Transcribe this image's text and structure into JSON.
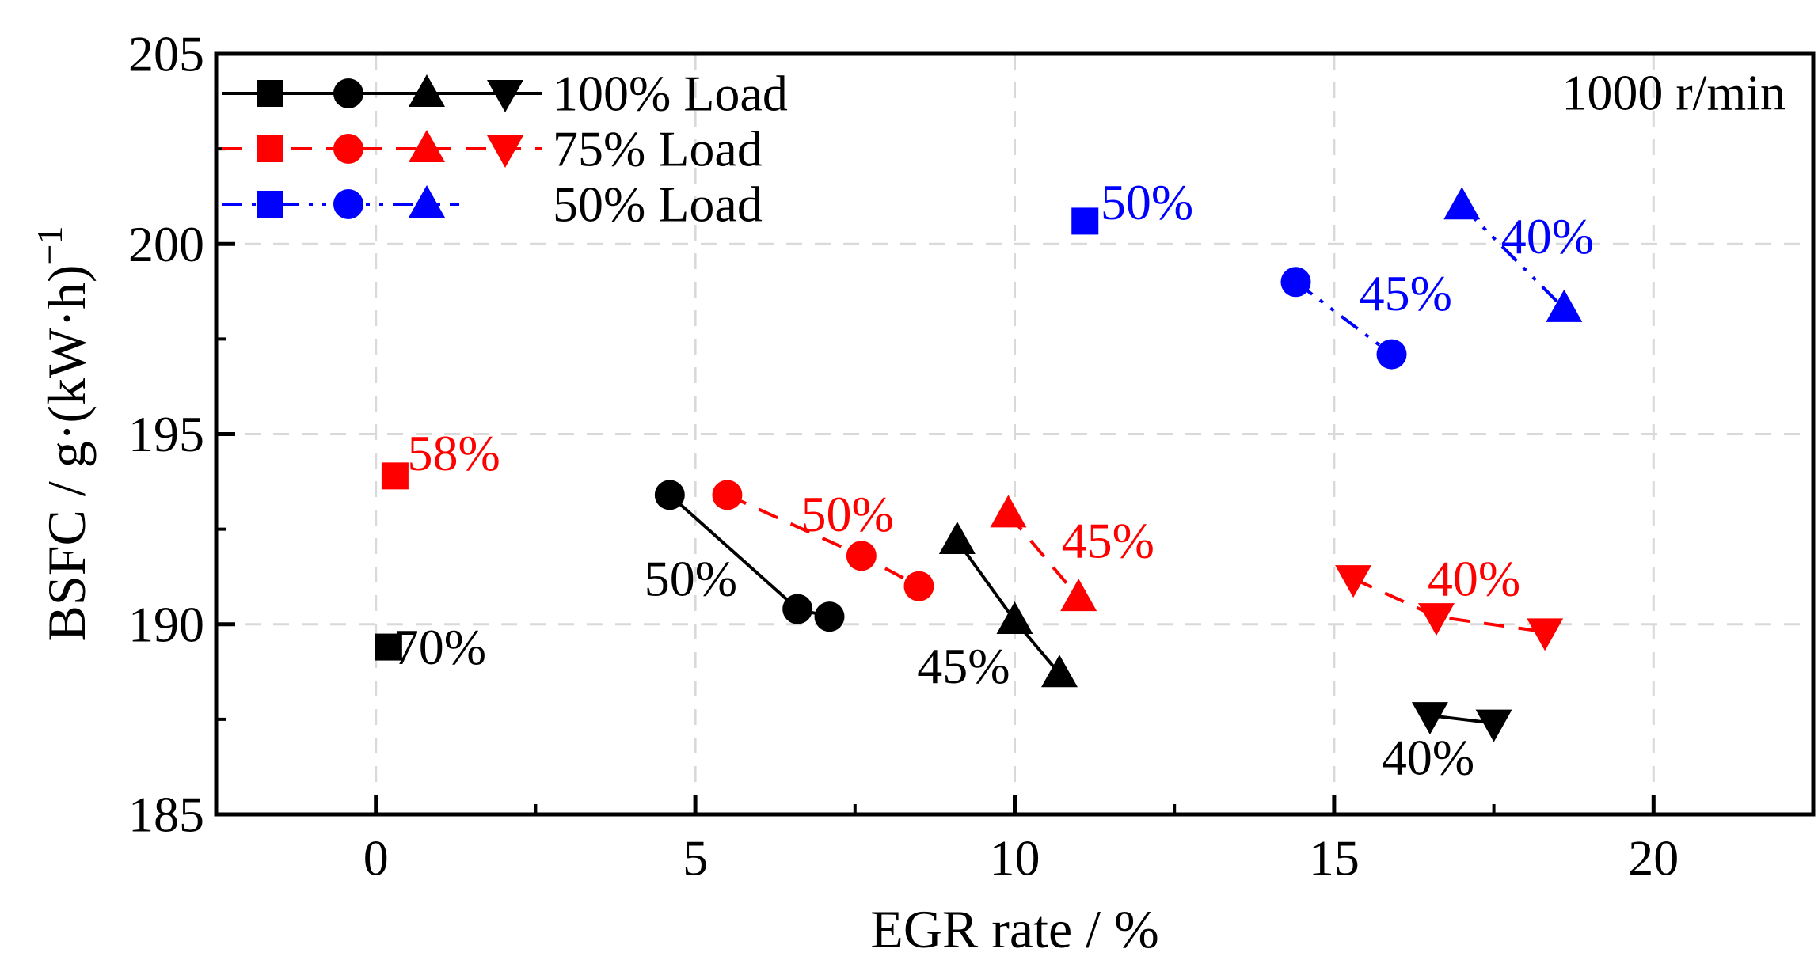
{
  "chart_data": {
    "type": "scatter",
    "annotation": "1000 r/min",
    "xlabel": "EGR rate / %",
    "ylabel": "BSFC / g·(kW·h)⁻¹",
    "ylabel_main": "BSFC / g·(kW·h)",
    "ylabel_sup": "−1",
    "xlim": [
      -2.5,
      22.5
    ],
    "ylim": [
      185,
      205
    ],
    "xticks": [
      0,
      5,
      10,
      15,
      20
    ],
    "xticks_minor": [
      2.5,
      7.5,
      12.5,
      17.5
    ],
    "yticks": [
      185,
      190,
      195,
      200,
      205
    ],
    "yticks_minor": [
      187.5,
      192.5,
      197.5,
      202.5
    ],
    "grid_x": [
      0,
      5,
      10,
      15,
      20
    ],
    "grid_y": [
      190,
      195,
      200
    ],
    "colors": {
      "black": "#000000",
      "red": "#ff0000",
      "blue": "#0000ff",
      "grid": "#d9d9d9",
      "axis": "#000000"
    },
    "legend": [
      {
        "label": "100% Load",
        "color": "#000000",
        "dash": "solid",
        "markers": [
          "square",
          "circle",
          "triangle-up",
          "triangle-down"
        ]
      },
      {
        "label": "75% Load",
        "color": "#ff0000",
        "dash": "dashed",
        "markers": [
          "square",
          "circle",
          "triangle-up",
          "triangle-down"
        ]
      },
      {
        "label": "50% Load",
        "color": "#0000ff",
        "dash": "dashdotdot",
        "markers": [
          "square",
          "circle",
          "triangle-up"
        ]
      }
    ],
    "series": [
      {
        "name": "100% Load",
        "color": "#000000",
        "dash": "solid",
        "groups": [
          {
            "marker": "square",
            "label": "70%",
            "label_at": [
              1.0,
              189.4
            ],
            "points": [
              [
                0.2,
                189.4
              ]
            ]
          },
          {
            "marker": "circle",
            "label": "50%",
            "label_at": [
              4.93,
              191.2
            ],
            "points": [
              [
                4.6,
                193.4
              ],
              [
                6.6,
                190.4
              ],
              [
                7.1,
                190.2
              ]
            ]
          },
          {
            "marker": "triangle-up",
            "label": "45%",
            "label_at": [
              9.2,
              188.9
            ],
            "points": [
              [
                9.1,
                192.2
              ],
              [
                10.0,
                190.1
              ],
              [
                10.7,
                188.7
              ]
            ]
          },
          {
            "marker": "triangle-down",
            "label": "40%",
            "label_at": [
              16.47,
              186.5
            ],
            "points": [
              [
                16.5,
                187.6
              ],
              [
                17.5,
                187.4
              ]
            ]
          }
        ]
      },
      {
        "name": "75% Load",
        "color": "#ff0000",
        "dash": "dashed",
        "groups": [
          {
            "marker": "square",
            "label": "58%",
            "label_at": [
              1.22,
              194.5
            ],
            "points": [
              [
                0.3,
                193.9
              ]
            ]
          },
          {
            "marker": "circle",
            "label": "50%",
            "label_at": [
              7.38,
              192.9
            ],
            "points": [
              [
                5.5,
                193.4
              ],
              [
                7.6,
                191.8
              ],
              [
                8.5,
                191.0
              ]
            ]
          },
          {
            "marker": "triangle-up",
            "label": "45%",
            "label_at": [
              11.46,
              192.2
            ],
            "points": [
              [
                9.9,
                192.9
              ],
              [
                11.0,
                190.7
              ]
            ]
          },
          {
            "marker": "triangle-down",
            "label": "40%",
            "label_at": [
              17.19,
              191.2
            ],
            "points": [
              [
                15.3,
                191.2
              ],
              [
                16.6,
                190.2
              ],
              [
                18.3,
                189.8
              ]
            ]
          }
        ]
      },
      {
        "name": "50% Load",
        "color": "#0000ff",
        "dash": "dashdotdot",
        "groups": [
          {
            "marker": "square",
            "label": "50%",
            "label_at": [
              12.07,
              201.1
            ],
            "points": [
              [
                11.1,
                200.6
              ]
            ]
          },
          {
            "marker": "circle",
            "label": "45%",
            "label_at": [
              16.12,
              198.7
            ],
            "points": [
              [
                14.4,
                199.0
              ],
              [
                15.9,
                197.1
              ]
            ]
          },
          {
            "marker": "triangle-up",
            "label": "40%",
            "label_at": [
              18.34,
              200.2
            ],
            "points": [
              [
                17.0,
                201.0
              ],
              [
                18.6,
                198.3
              ]
            ]
          }
        ]
      }
    ]
  }
}
